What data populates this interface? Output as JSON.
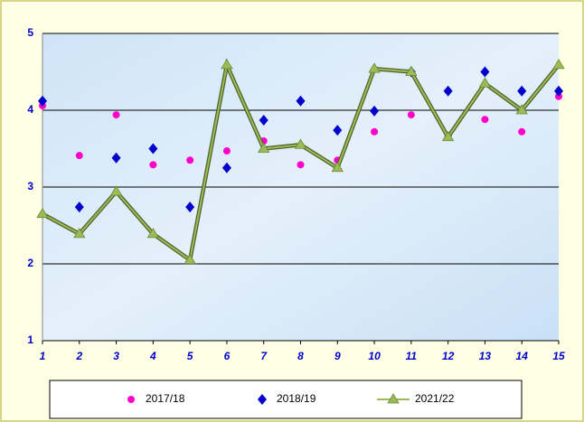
{
  "chart_data": {
    "type": "line",
    "x": [
      1,
      2,
      3,
      4,
      5,
      6,
      7,
      8,
      9,
      10,
      11,
      12,
      13,
      14,
      15
    ],
    "series": [
      {
        "name": "2017/18",
        "color": "#ff00cc",
        "marker": "circle",
        "line": false,
        "values": [
          4.06,
          3.41,
          3.94,
          3.29,
          3.35,
          3.47,
          3.6,
          3.29,
          3.35,
          3.72,
          3.94,
          3.66,
          3.88,
          3.72,
          4.18
        ]
      },
      {
        "name": "2018/19",
        "color": "#0000cc",
        "marker": "diamond",
        "line": false,
        "values": [
          4.12,
          2.74,
          3.38,
          3.5,
          2.74,
          3.25,
          3.87,
          4.12,
          3.74,
          3.99,
          4.5,
          4.25,
          4.5,
          4.25,
          4.25
        ]
      },
      {
        "name": "2021/22",
        "color": "#9bbb59",
        "marker": "triangle",
        "line": true,
        "values": [
          2.65,
          2.39,
          2.94,
          2.39,
          2.05,
          4.59,
          3.5,
          3.55,
          3.25,
          4.54,
          4.5,
          3.65,
          4.35,
          4.0,
          4.59
        ]
      }
    ],
    "xlim": [
      1,
      15
    ],
    "xticks": [
      1,
      2,
      3,
      4,
      5,
      6,
      7,
      8,
      9,
      10,
      11,
      12,
      13,
      14,
      15
    ],
    "ylim": [
      1,
      5
    ],
    "yticks": [
      1,
      2,
      3,
      4,
      5
    ],
    "grid": true,
    "legend": "bottom"
  }
}
